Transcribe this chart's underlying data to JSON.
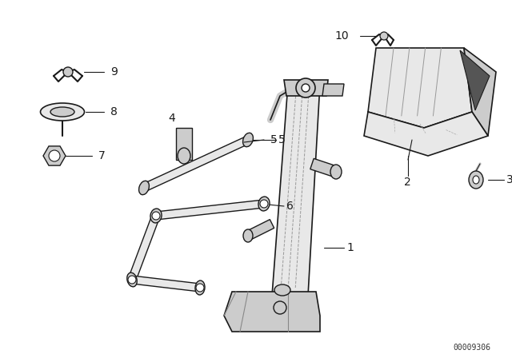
{
  "background_color": "#ffffff",
  "part_number": "00009306",
  "fig_width": 6.4,
  "fig_height": 4.48,
  "dpi": 100,
  "line_color": "#1a1a1a",
  "fill_light": "#e8e8e8",
  "fill_mid": "#cccccc",
  "fill_dark": "#aaaaaa"
}
